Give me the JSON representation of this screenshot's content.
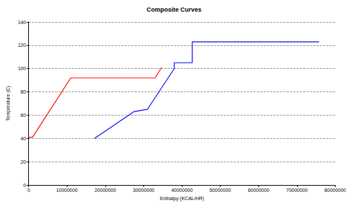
{
  "chart_data": {
    "type": "line",
    "title": "Composite Curves",
    "x_label": "Enthalpy (KCAL/HR)",
    "y_label": "Temperature (C)",
    "xlim": [
      0,
      80000000
    ],
    "xticks": [
      0,
      10000000,
      20000000,
      30000000,
      40000000,
      50000000,
      60000000,
      70000000,
      80000000
    ],
    "ylim": [
      0,
      140
    ],
    "yticks": [
      0,
      20,
      40,
      60,
      80,
      100,
      120,
      140
    ],
    "grid": true,
    "marker": "none",
    "series": [
      {
        "color": "#ff0000",
        "line_style": "solid",
        "x": [
          0,
          1000000,
          11000000,
          33000000,
          34700000
        ],
        "values": [
          41,
          41,
          92,
          92,
          101
        ]
      },
      {
        "color": "#0000ff",
        "line_style": "solid",
        "x": [
          17200000,
          27500000,
          31000000,
          38000000,
          38000000,
          42700000,
          42700000,
          75800000
        ],
        "values": [
          40,
          63,
          65,
          100,
          105,
          105,
          123,
          123
        ]
      }
    ]
  }
}
